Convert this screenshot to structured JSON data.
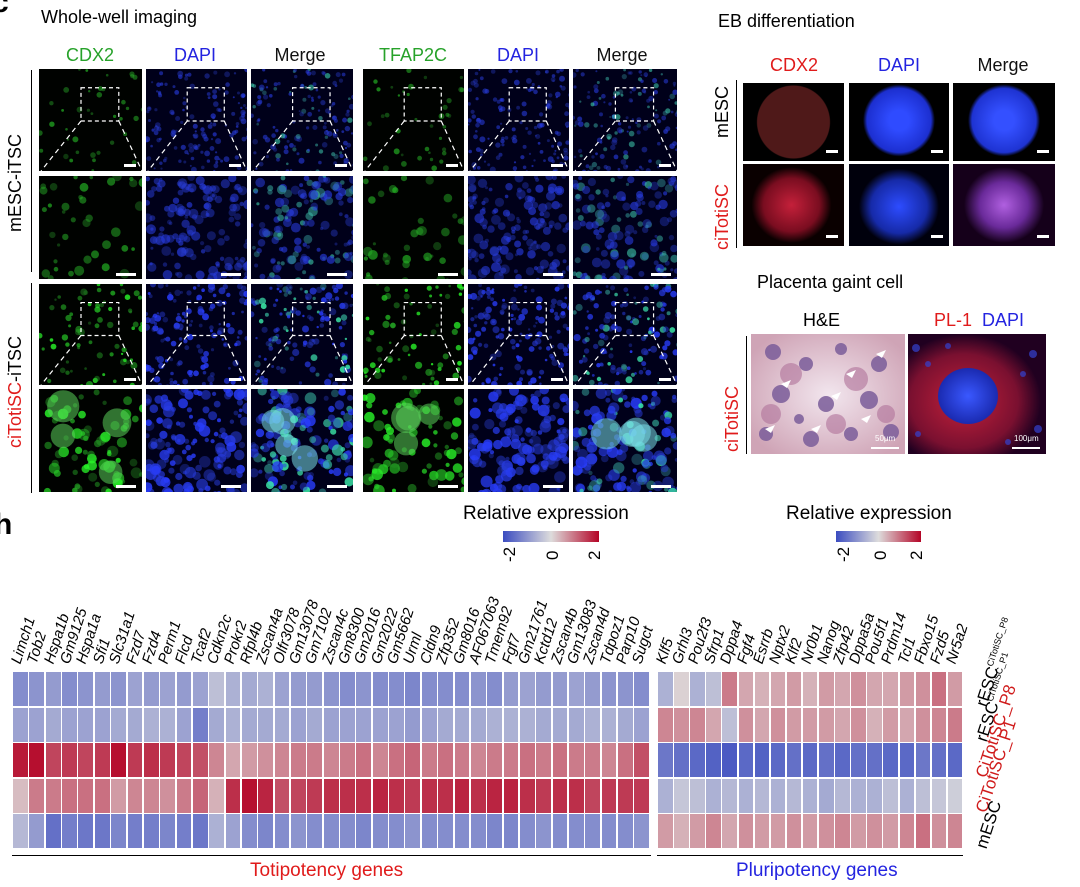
{
  "panel_letters": {
    "top": "c",
    "bottom": "h"
  },
  "whole_well": {
    "title": "Whole-well imaging",
    "columns": [
      "CDX2",
      "DAPI",
      "Merge",
      "TFAP2C",
      "DAPI",
      "Merge"
    ],
    "rows": [
      {
        "prefix": "mESC",
        "suffix": "-iTSC"
      },
      {
        "prefix": "ciTotiSC",
        "suffix": "-iTSC"
      }
    ]
  },
  "eb": {
    "title": "EB differentiation",
    "columns": [
      "CDX2",
      "DAPI",
      "Merge"
    ],
    "rows": [
      "mESC",
      "ciTotiSC"
    ]
  },
  "placenta": {
    "title": "Placenta gaint cell",
    "col1": "H&E",
    "col2a": "PL-1",
    "col2b": "DAPI",
    "row": "ciTotiSC",
    "scale1": "50μm",
    "scale2": "100μm"
  },
  "heatmap": {
    "legend_title": "Relative expression",
    "legend_ticks": [
      "-2",
      "0",
      "2"
    ],
    "totipotency_label": "Totipotency genes",
    "pluripotency_label": "Pluripotency genes",
    "rows": [
      {
        "base": "rESC",
        "sup": "CiTotiSC_P8"
      },
      {
        "base": "rESC",
        "sup": "CiTotiSC_P1"
      },
      {
        "base": "CiTotiSC_P8",
        "sup": ""
      },
      {
        "base": "CiTotiSC_P1",
        "sup": ""
      },
      {
        "base": "mESC",
        "sup": ""
      }
    ],
    "toti_genes": [
      "Limch1",
      "Tob2",
      "Hspa1b",
      "Gm9125",
      "Hspa1a",
      "Sfi1",
      "Slc31a1",
      "Fzd7",
      "Fzd4",
      "Perm1",
      "Flcd",
      "Tcaf2",
      "Cdkn2c",
      "Prokr2",
      "Rfpl4b",
      "Zscan4a",
      "Olfr3078",
      "Gm13078",
      "Gm7102",
      "Zscan4c",
      "Gm8300",
      "Gm2016",
      "Gm2022",
      "Gm5662",
      "Urml",
      "Cldn9",
      "Zfp352",
      "Gm8016",
      "AF067063",
      "Tmem92",
      "Fgf7",
      "Gm21761",
      "Kctd12",
      "Zscan4b",
      "Gm13083",
      "Zscan4d",
      "Tdpoz1",
      "Parp10",
      "Sugct"
    ],
    "pluri_genes": [
      "Klf5",
      "Grhl3",
      "Pou2f3",
      "Sfrp1",
      "Dppa4",
      "Fgf4",
      "Esrrb",
      "Nptx2",
      "Klf2",
      "Nr0b1",
      "Nanog",
      "Zfp42",
      "Dppa5a",
      "Pou5f1",
      "Prdm14",
      "Tcl1",
      "Fbxo15",
      "Fzd5",
      "Nr5a2"
    ],
    "toti_values": [
      [
        -1.1,
        -1.0,
        -0.9,
        -1.1,
        -1.0,
        -0.9,
        -1.0,
        -0.8,
        -0.9,
        -0.8,
        -0.9,
        -0.8,
        -0.4,
        -0.6,
        -0.7,
        -0.6,
        -0.8,
        -0.9,
        -0.9,
        -1.0,
        -1.1,
        -1.0,
        -1.1,
        -1.1,
        -1.2,
        -1.1,
        -1.1,
        -1.1,
        -1.0,
        -1.1,
        -0.9,
        -0.8,
        -0.9,
        -0.9,
        -0.8,
        -0.9,
        -1.0,
        -1.0,
        -1.1
      ],
      [
        -0.8,
        -0.8,
        -0.7,
        -0.8,
        -0.8,
        -0.8,
        -0.7,
        -0.7,
        -0.6,
        -0.6,
        -0.8,
        -1.3,
        -0.7,
        -0.6,
        -0.7,
        -0.7,
        -0.7,
        -0.8,
        -0.7,
        -0.8,
        -0.8,
        -0.8,
        -0.8,
        -0.8,
        -0.9,
        -0.8,
        -0.7,
        -0.7,
        -0.7,
        -0.6,
        -0.6,
        -0.6,
        -0.7,
        -0.7,
        -0.7,
        -0.6,
        -0.6,
        -0.7,
        -0.8
      ],
      [
        1.8,
        1.9,
        1.4,
        1.5,
        1.4,
        1.5,
        1.9,
        1.5,
        1.6,
        1.5,
        1.4,
        1.3,
        0.8,
        0.5,
        0.6,
        0.7,
        0.8,
        0.9,
        0.9,
        0.8,
        0.9,
        1.0,
        0.8,
        1.0,
        1.1,
        0.9,
        1.0,
        0.9,
        0.8,
        0.9,
        0.9,
        1.0,
        0.9,
        1.0,
        0.9,
        0.9,
        0.8,
        1.0,
        1.3
      ],
      [
        0.3,
        0.9,
        0.9,
        1.0,
        1.0,
        1.0,
        0.6,
        0.8,
        0.8,
        0.7,
        0.9,
        1.1,
        0.4,
        1.6,
        1.9,
        1.7,
        1.3,
        1.4,
        1.5,
        1.6,
        1.6,
        1.6,
        1.7,
        1.6,
        1.5,
        1.6,
        1.6,
        1.7,
        1.6,
        1.7,
        1.7,
        1.6,
        1.5,
        1.6,
        1.6,
        1.4,
        1.5,
        1.5,
        1.5
      ],
      [
        -0.5,
        -0.9,
        -1.5,
        -1.3,
        -1.4,
        -1.4,
        -1.2,
        -1.3,
        -1.3,
        -1.2,
        -1.3,
        -1.4,
        -0.6,
        -0.8,
        -1.1,
        -1.2,
        -1.1,
        -1.0,
        -1.1,
        -1.1,
        -1.1,
        -1.2,
        -1.1,
        -1.1,
        -1.0,
        -1.1,
        -1.1,
        -1.1,
        -1.1,
        -1.2,
        -1.2,
        -1.1,
        -1.0,
        -1.1,
        -1.1,
        -1.1,
        -1.1,
        -1.1,
        -1.0
      ]
    ],
    "pluri_values": [
      [
        -0.6,
        0.1,
        -0.6,
        -0.4,
        0.9,
        0.5,
        0.4,
        0.5,
        0.6,
        0.4,
        0.6,
        0.5,
        0.7,
        0.5,
        0.5,
        0.6,
        0.7,
        1.0,
        0.6
      ],
      [
        0.8,
        0.7,
        0.8,
        0.5,
        -0.4,
        0.7,
        0.5,
        0.7,
        0.6,
        0.6,
        0.6,
        0.5,
        0.7,
        0.4,
        0.6,
        0.5,
        0.7,
        0.8,
        0.9
      ],
      [
        -1.4,
        -1.5,
        -1.6,
        -1.7,
        -1.8,
        -1.6,
        -1.7,
        -1.6,
        -1.5,
        -1.6,
        -1.5,
        -1.6,
        -1.5,
        -1.5,
        -1.6,
        -1.6,
        -1.4,
        -1.5,
        -1.6
      ],
      [
        -0.6,
        -0.3,
        -0.4,
        -0.6,
        -0.5,
        -0.6,
        -0.5,
        -0.6,
        -0.5,
        -0.6,
        -0.7,
        -0.5,
        -0.6,
        -0.6,
        -0.4,
        -0.6,
        -0.4,
        -0.3,
        -0.2
      ],
      [
        0.6,
        0.4,
        0.6,
        0.8,
        0.5,
        0.7,
        0.6,
        0.6,
        0.7,
        0.6,
        0.7,
        0.8,
        0.6,
        0.7,
        0.6,
        0.8,
        1.0,
        0.7,
        0.8
      ]
    ]
  }
}
